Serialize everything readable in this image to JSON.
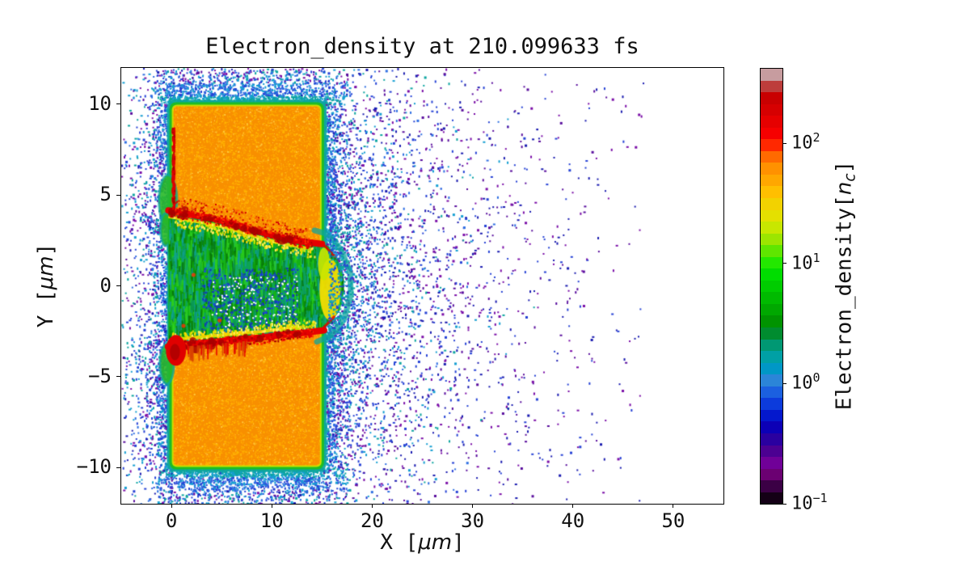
{
  "chart_data": {
    "type": "heatmap",
    "title": "Electron_density at 210.099633 fs",
    "xlabel": {
      "prefix": "X [",
      "unit": "μm",
      "suffix": "]"
    },
    "ylabel": {
      "prefix": "Y [",
      "unit": "μm",
      "suffix": "]"
    },
    "xlim": [
      -5,
      55
    ],
    "ylim": [
      -12,
      12
    ],
    "grid": false,
    "xticks": {
      "values": [
        0,
        10,
        20,
        30,
        40,
        50
      ],
      "labels": [
        "0",
        "10",
        "20",
        "30",
        "40",
        "50"
      ]
    },
    "yticks": {
      "values": [
        10,
        5,
        0,
        -5,
        -10
      ],
      "labels": [
        "10",
        "5",
        "0",
        "−5",
        "−10"
      ]
    },
    "colorbar": {
      "label": {
        "prefix": "Electron_density[",
        "unit": "n",
        "sub": "c",
        "suffix": "]"
      },
      "scale": "log",
      "colormap": "nipy_spectral (discrete)",
      "vmin": 0.1,
      "vmax": 417,
      "ticks": [
        {
          "base": "10",
          "exp": "2",
          "value": 100
        },
        {
          "base": "10",
          "exp": "1",
          "value": 10
        },
        {
          "base": "10",
          "exp": "0",
          "value": 1
        },
        {
          "base": "10",
          "exp": "−1",
          "value": 0.1
        }
      ],
      "segments": [
        "#c79c9f",
        "#bd3d3b",
        "#c90001",
        "#d60001",
        "#e60000",
        "#f60000",
        "#ff2800",
        "#ff6a00",
        "#ff9100",
        "#ffa700",
        "#ffbf00",
        "#f2d200",
        "#e4e000",
        "#c8e700",
        "#9ce500",
        "#5fe600",
        "#23e800",
        "#00dd00",
        "#00cc00",
        "#00ba00",
        "#00a800",
        "#009300",
        "#008c2f",
        "#009873",
        "#00a0a5",
        "#0097c6",
        "#2b85d8",
        "#1b60e0",
        "#0c3bdc",
        "#0418cd",
        "#0c00b6",
        "#2a00a0",
        "#4c0092",
        "#700098",
        "#6b0072",
        "#3b0045",
        "#140016"
      ]
    },
    "features": {
      "target_slab": {
        "x0": 0,
        "x1": 15,
        "y0": -10,
        "y1": 10,
        "density_nc": 100,
        "base_color": "#f88f00",
        "speckle_colors": [
          "#ffb300",
          "#ff9d00",
          "#ffc83c"
        ],
        "rim_colors": [
          "#0ea59c",
          "#1fbe1f",
          "#c9e300"
        ],
        "corner_radius_px": 6
      },
      "channel": {
        "top_boundary": [
          [
            -0.3,
            4.15
          ],
          [
            2,
            3.92
          ],
          [
            4,
            3.72
          ],
          [
            6,
            3.45
          ],
          [
            8,
            3.1
          ],
          [
            10,
            2.8
          ],
          [
            12,
            2.55
          ],
          [
            13.5,
            2.4
          ]
        ],
        "nose": [
          [
            14.6,
            2.45
          ],
          [
            15.7,
            2.15
          ],
          [
            16.6,
            1.35
          ],
          [
            17.15,
            0.5
          ],
          [
            17.2,
            -0.3
          ],
          [
            16.8,
            -1.3
          ],
          [
            15.9,
            -2.05
          ],
          [
            14.8,
            -2.45
          ]
        ],
        "bottom_boundary": [
          [
            13,
            -2.6
          ],
          [
            11,
            -2.7
          ],
          [
            9,
            -2.85
          ],
          [
            7,
            -2.95
          ],
          [
            5,
            -3.05
          ],
          [
            3,
            -3.15
          ],
          [
            1,
            -3.25
          ],
          [
            -0.3,
            -3.35
          ]
        ],
        "fill_color": "#14b217",
        "striation_colors": [
          "#0b8f0b",
          "#0b9e6e",
          "#2ecf1f",
          "#0f9f9f",
          "#077307"
        ],
        "speck_blue": [
          "#1d49d6",
          "#123bb3"
        ],
        "speck_white": "#ffffff",
        "yellow": [
          "#ffe000",
          "#c9e600",
          "#ffd800",
          "#ffef5e"
        ],
        "ridge_color": "#e60000",
        "ridge_dark": "#a80000",
        "ridge_bright": "#ff2f00",
        "nose_yellow_center": [
          15.8,
          -0.2
        ]
      },
      "front_surface": {
        "red_line_x": 0.1,
        "red_line_y": [
          4.3,
          8.8
        ],
        "red_color": "#e00000",
        "red_dark": "#a50000",
        "blob_center": [
          0.45,
          -3.55
        ],
        "blob_radius": [
          1.0,
          0.85
        ],
        "green_bulges": [
          [
            -0.35,
            4.7,
            0.9,
            1.4
          ],
          [
            -0.55,
            3.1,
            0.55,
            0.9
          ],
          [
            -0.45,
            -4.3,
            0.7,
            1.1
          ]
        ],
        "bulge_color": "#28b828"
      },
      "scatter": {
        "seed": 42,
        "palette": [
          [
            "#2743d6",
            0.26
          ],
          [
            "#2f6fe3",
            0.14
          ],
          [
            "#169fd2",
            0.2
          ],
          [
            "#0da5a0",
            0.12
          ],
          [
            "#7b0fa8",
            0.16
          ],
          [
            "#1a1bb0",
            0.07
          ],
          [
            "#5a0f9e",
            0.05
          ]
        ],
        "near_colors": [
          "#0da5a0",
          "#169fd2"
        ],
        "mid_colors": [
          "#169fd2",
          "#2743d6",
          "#2f6fe3"
        ],
        "far_colors": [
          "#7b0fa8",
          "#1a1bb0",
          "#5a0f9e",
          "#2743d6"
        ],
        "halo_count": 5200,
        "halo_scale_um": 0.9,
        "right_count": 3200,
        "right_scale_um": 6.5,
        "right_xmax": 42,
        "left_count": 1500,
        "left_scale_um": 2.4,
        "vert_count": 1500,
        "vert_scale_um": 1.4,
        "uniform_count": 520,
        "uniform_xmax": 47
      }
    }
  }
}
